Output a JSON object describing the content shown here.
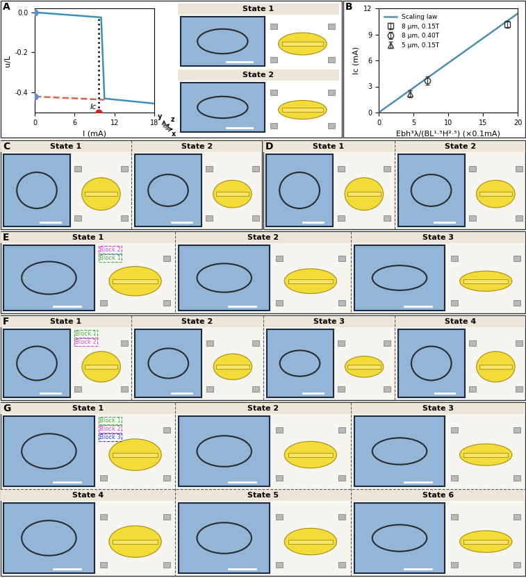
{
  "chart_data": [
    {
      "label": "A",
      "type": "line",
      "x_label": "I (mA)",
      "y_label": "u/L",
      "xlim": [
        0,
        18
      ],
      "xticks": [
        0,
        6,
        12,
        18
      ],
      "ylim": [
        -0.5,
        0.02
      ],
      "yticks": [
        {
          "value": -0.4,
          "label": "-0.4"
        },
        {
          "value": -0.2,
          "label": "-0.2"
        },
        {
          "value": 0,
          "label": "0.0"
        }
      ],
      "series": [
        {
          "x": [
            0,
            10.0,
            10.5,
            18
          ],
          "values": [
            0,
            -0.025,
            -0.43,
            -0.455
          ],
          "color": "#3f8fb5",
          "line_style": "solid"
        },
        {
          "x": [
            0,
            10.5
          ],
          "values": [
            -0.42,
            -0.436
          ],
          "color": "#e06050",
          "line_style": "dashed"
        },
        {
          "x": [
            9.6,
            9.6
          ],
          "values": [
            -0.5,
            -0.03
          ],
          "color": "#000000",
          "line_style": "dotted"
        },
        {
          "type": "scatter",
          "x": [
            0,
            0
          ],
          "values": [
            0,
            -0.42
          ],
          "color": "#5b8fd6",
          "marker": "o"
        },
        {
          "type": "scatter",
          "x": [
            9.6
          ],
          "values": [
            -0.5
          ],
          "color": "#e02020",
          "marker": "o"
        }
      ],
      "annotations": [
        {
          "text": "Ic",
          "x": 9.6,
          "y": -0.5
        }
      ],
      "insets": [
        {
          "title": "State 1"
        },
        {
          "title": "State 2"
        }
      ],
      "axes_triad": [
        "y",
        "z",
        "x"
      ]
    },
    {
      "label": "B",
      "type": "scatter",
      "x_label": "Ebh³λ/(BL¹·⁵H²·⁵) (×0.1mA)",
      "y_label": "Ic (mA)",
      "xlim": [
        0,
        20
      ],
      "xticks": [
        0,
        5,
        10,
        15,
        20
      ],
      "ylim": [
        0,
        12
      ],
      "yticks": [
        0,
        3,
        6,
        9,
        12
      ],
      "legend": "upper left",
      "series": [
        {
          "name": "Scaling law",
          "type": "line",
          "x": [
            0,
            20
          ],
          "values": [
            0,
            11.4
          ],
          "color": "#4a8fb0"
        },
        {
          "name": "8 μm, 0.15T",
          "x": [
            18.5
          ],
          "values": [
            10.2
          ],
          "errors": [
            0.4
          ],
          "marker": "s",
          "color": "#333333"
        },
        {
          "name": "8 μm, 0.40T",
          "x": [
            7.0
          ],
          "values": [
            3.7
          ],
          "errors": [
            0.5
          ],
          "marker": "o",
          "color": "#333333"
        },
        {
          "name": "5 μm, 0.15T",
          "x": [
            4.5
          ],
          "values": [
            2.2
          ],
          "errors": [
            0.4
          ],
          "marker": "^",
          "color": "#333333"
        }
      ]
    }
  ],
  "panels": [
    {
      "label": "C",
      "states": [
        {
          "title": "State 1"
        },
        {
          "title": "State 2"
        }
      ]
    },
    {
      "label": "D",
      "states": [
        {
          "title": "State 1"
        },
        {
          "title": "State 2"
        }
      ]
    },
    {
      "label": "E",
      "states": [
        {
          "title": "State 1",
          "blocks": [
            {
              "text": "Block 2",
              "color": "#e040e0"
            },
            {
              "text": "Block 1",
              "color": "#40b040"
            }
          ]
        },
        {
          "title": "State 2"
        },
        {
          "title": "State 3"
        }
      ]
    },
    {
      "label": "F",
      "states": [
        {
          "title": "State 1",
          "blocks": [
            {
              "text": "Block 1",
              "color": "#40b040"
            },
            {
              "text": "Block 2",
              "color": "#e040e0"
            }
          ]
        },
        {
          "title": "State 2"
        },
        {
          "title": "State 3"
        },
        {
          "title": "State 4"
        }
      ]
    },
    {
      "label": "G",
      "states": [
        {
          "title": "State 1",
          "blocks": [
            {
              "text": "Block 1",
              "color": "#40b040"
            },
            {
              "text": "Block 2",
              "color": "#e040e0"
            },
            {
              "text": "Block 3",
              "color": "#3040d0"
            }
          ]
        },
        {
          "title": "State 2"
        },
        {
          "title": "State 3"
        },
        {
          "title": "State 4"
        },
        {
          "title": "State 5"
        },
        {
          "title": "State 6"
        }
      ]
    }
  ]
}
